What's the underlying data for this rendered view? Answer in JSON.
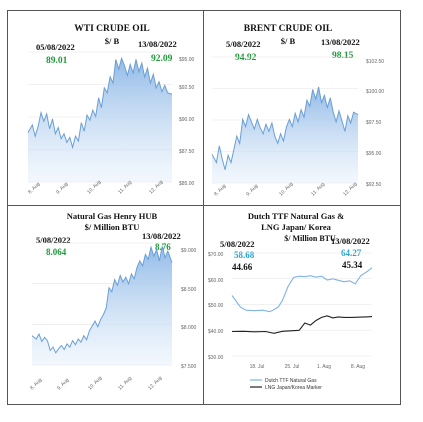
{
  "chart_data": [
    {
      "id": "wti",
      "type": "area",
      "title": "WTI CRUDE OIL",
      "subtitle": "$/ B",
      "start_label": {
        "date": "05/08/2022",
        "value": "89.01"
      },
      "end_label": {
        "date": "13/08/2022",
        "value": "92.09"
      },
      "x_ticks": [
        "8. Aug",
        "9. Aug",
        "10. Aug",
        "11. Aug",
        "12. Aug"
      ],
      "y_ticks": [
        "$95.00",
        "$92.50",
        "$90.00",
        "$87.50",
        "$85.00"
      ],
      "ylim": [
        85,
        95.5
      ],
      "xlim": [
        0,
        1
      ],
      "grid": true,
      "color": "#6a9fd6",
      "x": [
        0.0,
        0.03,
        0.05,
        0.07,
        0.09,
        0.11,
        0.13,
        0.15,
        0.17,
        0.19,
        0.21,
        0.23,
        0.25,
        0.27,
        0.29,
        0.31,
        0.33,
        0.35,
        0.37,
        0.39,
        0.41,
        0.43,
        0.45,
        0.47,
        0.49,
        0.51,
        0.53,
        0.55,
        0.57,
        0.59,
        0.61,
        0.63,
        0.65,
        0.67,
        0.69,
        0.71,
        0.73,
        0.75,
        0.77,
        0.79,
        0.81,
        0.83,
        0.85,
        0.87,
        0.89,
        0.91,
        0.93,
        0.95,
        0.97,
        1.0
      ],
      "y": [
        89.0,
        89.6,
        88.7,
        89.5,
        90.6,
        89.9,
        90.5,
        89.3,
        90.1,
        88.9,
        89.4,
        88.5,
        88.9,
        88.2,
        88.6,
        87.8,
        88.7,
        88.3,
        89.8,
        89.1,
        90.4,
        90.0,
        90.8,
        90.3,
        91.8,
        91.0,
        92.6,
        92.2,
        93.5,
        93.0,
        94.9,
        94.1,
        95.0,
        94.4,
        93.6,
        94.5,
        93.8,
        94.9,
        93.9,
        94.6,
        93.5,
        94.2,
        93.0,
        93.7,
        92.6,
        93.1,
        92.3,
        92.8,
        92.2,
        92.1
      ]
    },
    {
      "id": "brent",
      "type": "area",
      "title": "BRENT  CRUDE OIL",
      "subtitle": "$/ B",
      "start_label": {
        "date": "5/08/2022",
        "value": "94.92"
      },
      "end_label": {
        "date": "13/08/2022",
        "value": "98.15"
      },
      "x_ticks": [
        "8. Aug",
        "9. Aug",
        "10. Aug",
        "11. Aug",
        "12. Aug"
      ],
      "y_ticks": [
        "$102.50",
        "$100.00",
        "$97.50",
        "$95.00",
        "$92.50"
      ],
      "ylim": [
        92.5,
        103.0
      ],
      "xlim": [
        0,
        1
      ],
      "grid": true,
      "color": "#6a9fd6",
      "x": [
        0.0,
        0.03,
        0.05,
        0.07,
        0.09,
        0.11,
        0.13,
        0.15,
        0.17,
        0.19,
        0.21,
        0.23,
        0.25,
        0.27,
        0.29,
        0.31,
        0.33,
        0.35,
        0.37,
        0.39,
        0.41,
        0.43,
        0.45,
        0.47,
        0.49,
        0.51,
        0.53,
        0.55,
        0.57,
        0.59,
        0.61,
        0.63,
        0.65,
        0.67,
        0.69,
        0.71,
        0.73,
        0.75,
        0.77,
        0.79,
        0.81,
        0.83,
        0.85,
        0.87,
        0.89,
        0.91,
        0.93,
        0.95,
        0.97,
        1.0
      ],
      "y": [
        94.9,
        94.2,
        95.6,
        94.5,
        93.6,
        94.8,
        94.2,
        95.3,
        96.4,
        95.8,
        97.8,
        97.2,
        98.2,
        97.6,
        97.0,
        97.8,
        97.1,
        96.6,
        97.4,
        96.8,
        97.5,
        96.4,
        95.8,
        96.6,
        96.0,
        97.2,
        97.8,
        97.2,
        98.3,
        97.6,
        98.6,
        98.0,
        99.4,
        98.9,
        100.3,
        99.5,
        100.5,
        99.2,
        99.8,
        98.8,
        99.6,
        98.4,
        97.6,
        98.5,
        97.7,
        96.8,
        98.1,
        97.5,
        98.4,
        98.2
      ]
    },
    {
      "id": "henryhub",
      "type": "area",
      "title": "Natural Gas  Henry HUB",
      "subtitle": "$/ Million BTU",
      "start_label": {
        "date": "5/08/2022",
        "value": "8.064"
      },
      "end_label": {
        "date": "13/08/2022",
        "value": "8.76"
      },
      "x_ticks": [
        "8. Aug",
        "9. Aug",
        "10. Aug",
        "11. Aug",
        "12. Aug"
      ],
      "y_ticks": [
        "$9.000",
        "$8.500",
        "$8.000",
        "$7.500"
      ],
      "ylim": [
        7.5,
        9.0
      ],
      "xlim": [
        0,
        1
      ],
      "grid": true,
      "color": "#6a9fd6",
      "x": [
        0.0,
        0.03,
        0.05,
        0.07,
        0.09,
        0.11,
        0.13,
        0.15,
        0.17,
        0.19,
        0.21,
        0.23,
        0.25,
        0.27,
        0.29,
        0.31,
        0.33,
        0.35,
        0.37,
        0.39,
        0.41,
        0.43,
        0.45,
        0.47,
        0.49,
        0.51,
        0.53,
        0.55,
        0.57,
        0.59,
        0.61,
        0.63,
        0.65,
        0.67,
        0.69,
        0.71,
        0.73,
        0.75,
        0.77,
        0.79,
        0.81,
        0.83,
        0.85,
        0.87,
        0.89,
        0.91,
        0.93,
        0.95,
        0.97,
        1.0
      ],
      "y": [
        7.86,
        7.82,
        7.88,
        7.79,
        7.84,
        7.8,
        7.68,
        7.72,
        7.65,
        7.7,
        7.74,
        7.69,
        7.76,
        7.72,
        7.8,
        7.75,
        7.82,
        7.78,
        7.86,
        7.81,
        7.92,
        7.98,
        8.04,
        7.97,
        8.06,
        8.12,
        8.2,
        8.45,
        8.4,
        8.55,
        8.48,
        8.6,
        8.52,
        8.58,
        8.5,
        8.62,
        8.56,
        8.7,
        8.78,
        8.72,
        8.86,
        8.8,
        8.95,
        8.84,
        8.92,
        8.78,
        8.96,
        8.82,
        8.9,
        8.76
      ]
    },
    {
      "id": "ttf_lng",
      "type": "line",
      "title": "Dutch TTF Natural Gas &",
      "title2": "LNG Japan/ Korea",
      "subtitle": "$/ Million BTU",
      "start_label": {
        "date": "5/08/2022",
        "value_a": "58.68",
        "value_b": "44.66"
      },
      "end_label": {
        "date": "13/08/2022",
        "value_a": "64.27",
        "value_b": "45.34"
      },
      "x_ticks": [
        "18. Jul",
        "25. Jul",
        "1. Aug",
        "8. Aug"
      ],
      "y_ticks": [
        "$70.00",
        "$60.00",
        "$50.00",
        "$40.00",
        "$30.00"
      ],
      "ylim": [
        30,
        70
      ],
      "xlim": [
        0,
        1
      ],
      "grid": true,
      "series": [
        {
          "name": "Dutch TTF Natural Gas",
          "color": "#7fb3e8",
          "x": [
            0.0,
            0.06,
            0.1,
            0.16,
            0.22,
            0.27,
            0.3,
            0.33,
            0.36,
            0.4,
            0.44,
            0.48,
            0.52,
            0.56,
            0.6,
            0.64,
            0.68,
            0.72,
            0.76,
            0.8,
            0.84,
            0.88,
            0.92,
            0.96,
            1.0
          ],
          "y": [
            53.5,
            49.0,
            47.8,
            47.6,
            47.8,
            47.2,
            48.0,
            49.0,
            51.5,
            57.0,
            60.5,
            61.0,
            60.8,
            61.2,
            60.6,
            61.0,
            59.5,
            60.0,
            59.4,
            58.8,
            59.2,
            58.0,
            61.2,
            62.6,
            64.3
          ]
        },
        {
          "name": "LNG Japan/Korea Marker",
          "color": "#222222",
          "x": [
            0.0,
            0.08,
            0.16,
            0.24,
            0.3,
            0.36,
            0.42,
            0.48,
            0.52,
            0.56,
            0.6,
            0.64,
            0.68,
            0.72,
            0.76,
            0.8,
            0.86,
            0.92,
            0.96,
            1.0
          ],
          "y": [
            39.5,
            39.6,
            39.4,
            39.5,
            38.8,
            39.6,
            39.8,
            40.0,
            42.8,
            42.0,
            43.8,
            45.0,
            45.6,
            44.8,
            45.2,
            45.0,
            45.0,
            45.1,
            45.2,
            45.3
          ]
        }
      ]
    }
  ]
}
